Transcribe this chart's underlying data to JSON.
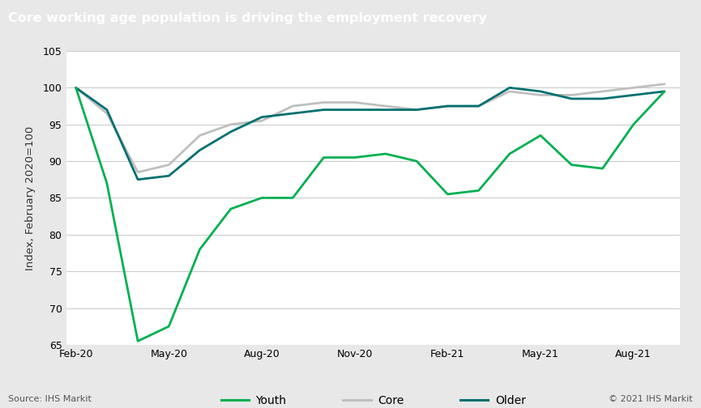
{
  "title": "Core working age population is driving the employment recovery",
  "ylabel": "Index, February 2020=100",
  "source_left": "Source: IHS Markit",
  "source_right": "© 2021 IHS Markit",
  "ylim": [
    65,
    105
  ],
  "yticks": [
    65,
    70,
    75,
    80,
    85,
    90,
    95,
    100,
    105
  ],
  "title_bg_color": "#757575",
  "title_text_color": "#ffffff",
  "plot_bg_color": "#ffffff",
  "outer_bg_color": "#e8e8e8",
  "grid_color": "#cccccc",
  "legend_entries": [
    "Youth",
    "Core",
    "Older"
  ],
  "youth_color": "#00b050",
  "core_color": "#bfbfbf",
  "older_color": "#007070",
  "x_labels": [
    "Feb-20",
    "May-20",
    "Aug-20",
    "Nov-20",
    "Feb-21",
    "May-21",
    "Aug-21"
  ],
  "x_positions": [
    0,
    3,
    6,
    9,
    12,
    15,
    18
  ],
  "youth_x": [
    0,
    1,
    2,
    3,
    4,
    5,
    6,
    7,
    8,
    9,
    10,
    11,
    12,
    13,
    14,
    15,
    16,
    17,
    18,
    19
  ],
  "youth_y": [
    100,
    87,
    65.5,
    67.5,
    78,
    83.5,
    85,
    85,
    90.5,
    90.5,
    91,
    90,
    85.5,
    86,
    91,
    93.5,
    89.5,
    89,
    95,
    99.5
  ],
  "core_x": [
    0,
    1,
    2,
    3,
    4,
    5,
    6,
    7,
    8,
    9,
    10,
    11,
    12,
    13,
    14,
    15,
    16,
    17,
    18,
    19
  ],
  "core_y": [
    100,
    96.5,
    88.5,
    89.5,
    93.5,
    95,
    95.5,
    97.5,
    98,
    98,
    97.5,
    97,
    97.5,
    97.5,
    99.5,
    99,
    99,
    99.5,
    100,
    100.5
  ],
  "older_x": [
    0,
    1,
    2,
    3,
    4,
    5,
    6,
    7,
    8,
    9,
    10,
    11,
    12,
    13,
    14,
    15,
    16,
    17,
    18,
    19
  ],
  "older_y": [
    100,
    97,
    87.5,
    88,
    91.5,
    94,
    96,
    96.5,
    97,
    97,
    97,
    97,
    97.5,
    97.5,
    100,
    99.5,
    98.5,
    98.5,
    99,
    99.5
  ]
}
